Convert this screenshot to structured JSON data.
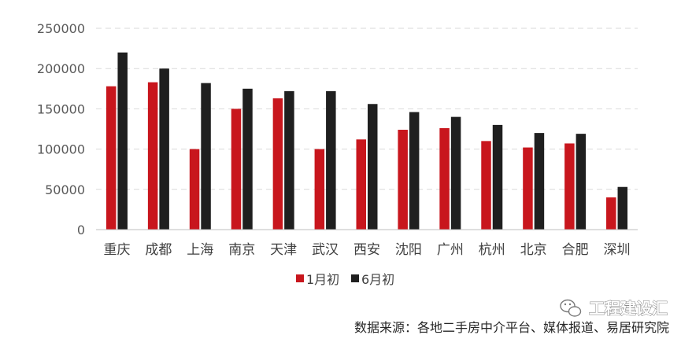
{
  "chart_data": {
    "type": "bar",
    "categories": [
      "重庆",
      "成都",
      "上海",
      "南京",
      "天津",
      "武汉",
      "西安",
      "沈阳",
      "广州",
      "杭州",
      "北京",
      "合肥",
      "深圳"
    ],
    "series": [
      {
        "name": "1月初",
        "color": "#C8161D",
        "values": [
          178000,
          183000,
          100000,
          150000,
          163000,
          100000,
          112000,
          124000,
          126000,
          110000,
          102000,
          107000,
          40000
        ]
      },
      {
        "name": "6月初",
        "color": "#1F1F1F",
        "values": [
          220000,
          200000,
          182000,
          175000,
          172000,
          172000,
          156000,
          146000,
          140000,
          130000,
          120000,
          119000,
          53000
        ]
      }
    ],
    "yticks": [
      0,
      50000,
      100000,
      150000,
      200000,
      250000
    ],
    "ylim": [
      0,
      250000
    ],
    "grid": true,
    "legend": "bottom-center"
  },
  "source": "数据来源：各地二手房中介平台、媒体报道、易居研究院",
  "watermark": "工程建设汇",
  "colors": {
    "gridline": "#D9D9D9",
    "axis": "#BFBFBF"
  }
}
